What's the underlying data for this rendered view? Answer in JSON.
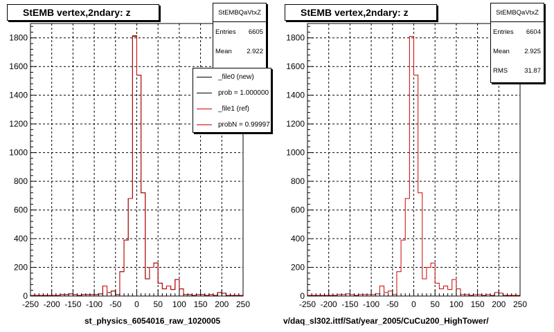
{
  "chart_data": [
    {
      "type": "histogram",
      "title": "StEMB  vertex,2ndary: z",
      "xlabel": "st_physics_6054016_raw_1020005",
      "ylabel": "",
      "xlim": [
        -250,
        250
      ],
      "ylim": [
        0,
        1900
      ],
      "x_ticks": [
        -250,
        -200,
        -150,
        -100,
        -50,
        0,
        50,
        100,
        150,
        200,
        250
      ],
      "y_ticks": [
        0,
        200,
        400,
        600,
        800,
        1000,
        1200,
        1400,
        1600,
        1800
      ],
      "grid": true,
      "bin_width": 10,
      "bin_edges_start": -250,
      "series": [
        {
          "name": "_file0 (new)",
          "color": "#000000",
          "values": [
            5,
            5,
            5,
            5,
            5,
            5,
            5,
            10,
            10,
            15,
            10,
            5,
            10,
            10,
            10,
            10,
            15,
            70,
            25,
            35,
            10,
            170,
            390,
            680,
            1810,
            1540,
            720,
            120,
            200,
            230,
            90,
            50,
            70,
            45,
            115,
            50,
            10,
            10,
            5,
            10,
            10,
            5,
            10,
            5,
            25,
            20,
            5,
            5,
            5,
            5
          ]
        },
        {
          "name": "_file1 (ref)",
          "color": "#cc0000",
          "values": [
            5,
            5,
            5,
            5,
            5,
            5,
            5,
            10,
            10,
            15,
            10,
            5,
            10,
            10,
            10,
            10,
            15,
            70,
            25,
            35,
            10,
            170,
            390,
            680,
            1815,
            1540,
            720,
            120,
            200,
            230,
            90,
            50,
            70,
            45,
            115,
            50,
            10,
            10,
            5,
            10,
            10,
            5,
            10,
            5,
            25,
            20,
            5,
            5,
            5,
            5
          ]
        }
      ],
      "stats": {
        "name": "StEMBQaVtxZ",
        "entries": "6605",
        "mean": "2.922"
      },
      "legend": {
        "position": "top-right",
        "entries": [
          "_file0 (new)",
          "prob = 1.000000",
          "_file1 (ref)",
          "probN = 0.99997"
        ],
        "colors": [
          "#000000",
          "#000000",
          "#cc0000",
          "#cc0000"
        ]
      }
    },
    {
      "type": "histogram",
      "title": "StEMB  vertex,2ndary: z",
      "xlabel": "v/daq_sl302.ittf/Sat/year_2005/CuCu200_HighTower/",
      "ylabel": "",
      "xlim": [
        -250,
        250
      ],
      "ylim": [
        0,
        1900
      ],
      "x_ticks": [
        -250,
        -200,
        -150,
        -100,
        -50,
        0,
        50,
        100,
        150,
        200,
        250
      ],
      "y_ticks": [
        0,
        200,
        400,
        600,
        800,
        1000,
        1200,
        1400,
        1600,
        1800
      ],
      "grid": true,
      "bin_width": 10,
      "bin_edges_start": -250,
      "series": [
        {
          "name": "",
          "color": "#cc0000",
          "values": [
            5,
            5,
            5,
            5,
            5,
            5,
            5,
            10,
            10,
            15,
            10,
            5,
            10,
            10,
            10,
            10,
            15,
            70,
            25,
            35,
            10,
            170,
            390,
            680,
            1810,
            1540,
            720,
            120,
            200,
            230,
            90,
            50,
            70,
            45,
            115,
            50,
            10,
            10,
            5,
            10,
            10,
            5,
            10,
            5,
            25,
            20,
            5,
            5,
            5,
            5
          ]
        }
      ],
      "stats": {
        "name": "StEMBQaVtxZ",
        "entries": "6604",
        "mean": "2.925",
        "rms": "31.87"
      }
    }
  ],
  "stats_labels": {
    "entries": "Entries",
    "mean": "Mean",
    "rms": "RMS"
  }
}
